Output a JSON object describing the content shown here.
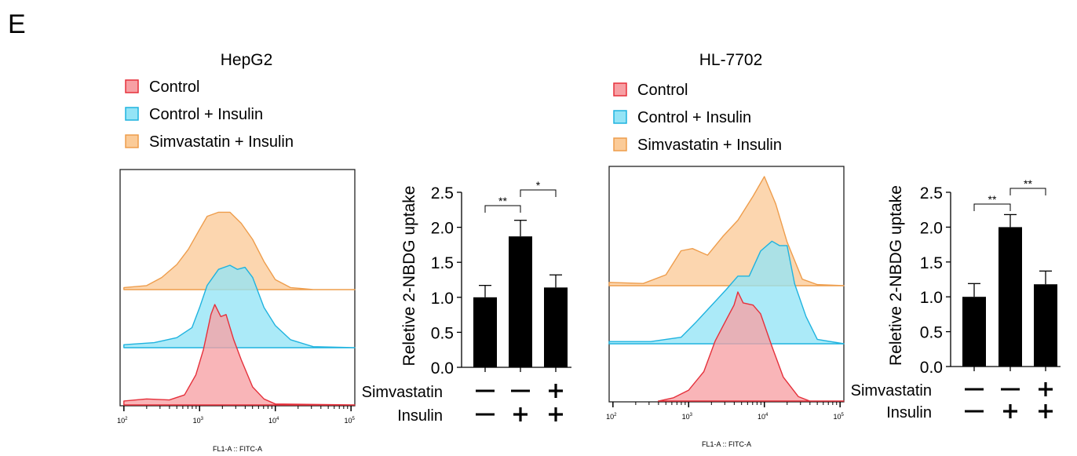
{
  "panel_label": "E",
  "colors": {
    "control": {
      "fill": "#f7a0a4",
      "stroke": "#e5303b"
    },
    "control_insulin": {
      "fill": "#94e4f6",
      "stroke": "#1fb3df"
    },
    "simvastatin_insulin": {
      "fill": "#fbcb98",
      "stroke": "#ee9d4c"
    },
    "bar": "#000000"
  },
  "chart_data": [
    {
      "type": "area",
      "title": "HepG2",
      "xlabel": "FL1-A :: FITC-A",
      "xscale": "log",
      "xlim_log10": [
        1.95,
        5.05
      ],
      "xticks": [
        {
          "exp": 2,
          "label_base": "10",
          "label_exp": "2"
        },
        {
          "exp": 3,
          "label_base": "10",
          "label_exp": "3"
        },
        {
          "exp": 4,
          "label_base": "10",
          "label_exp": "4"
        },
        {
          "exp": 5,
          "label_base": "10",
          "label_exp": "5"
        }
      ],
      "legend": [
        "Control",
        "Control + Insulin",
        "Simvastatin + Insulin"
      ],
      "series": [
        {
          "name": "Control",
          "key": "control",
          "points": [
            [
              2.0,
              0.04
            ],
            [
              2.3,
              0.06
            ],
            [
              2.6,
              0.05
            ],
            [
              2.8,
              0.1
            ],
            [
              2.95,
              0.3
            ],
            [
              3.05,
              0.55
            ],
            [
              3.15,
              0.9
            ],
            [
              3.2,
              1.0
            ],
            [
              3.28,
              0.88
            ],
            [
              3.35,
              0.9
            ],
            [
              3.45,
              0.65
            ],
            [
              3.55,
              0.45
            ],
            [
              3.7,
              0.18
            ],
            [
              3.85,
              0.06
            ],
            [
              4.0,
              0.01
            ],
            [
              5.05,
              0
            ]
          ]
        },
        {
          "name": "Control + Insulin",
          "key": "control_insulin",
          "points": [
            [
              2.0,
              0.03
            ],
            [
              2.4,
              0.05
            ],
            [
              2.7,
              0.1
            ],
            [
              2.9,
              0.2
            ],
            [
              3.0,
              0.4
            ],
            [
              3.1,
              0.62
            ],
            [
              3.25,
              0.78
            ],
            [
              3.4,
              0.82
            ],
            [
              3.5,
              0.78
            ],
            [
              3.6,
              0.8
            ],
            [
              3.7,
              0.7
            ],
            [
              3.85,
              0.4
            ],
            [
              4.0,
              0.22
            ],
            [
              4.2,
              0.08
            ],
            [
              4.5,
              0.01
            ],
            [
              5.05,
              0
            ]
          ]
        },
        {
          "name": "Simvastatin + Insulin",
          "key": "simvastatin_insulin",
          "points": [
            [
              2.0,
              0.02
            ],
            [
              2.3,
              0.04
            ],
            [
              2.5,
              0.12
            ],
            [
              2.7,
              0.25
            ],
            [
              2.85,
              0.4
            ],
            [
              3.0,
              0.6
            ],
            [
              3.1,
              0.73
            ],
            [
              3.25,
              0.77
            ],
            [
              3.4,
              0.77
            ],
            [
              3.55,
              0.66
            ],
            [
              3.7,
              0.5
            ],
            [
              3.85,
              0.28
            ],
            [
              4.0,
              0.1
            ],
            [
              4.2,
              0.02
            ],
            [
              4.5,
              0
            ],
            [
              5.05,
              0
            ]
          ]
        }
      ]
    },
    {
      "type": "bar",
      "title": "HepG2",
      "ylabel": "Reletive 2-NBDG uptake",
      "ylim": [
        0,
        2.5
      ],
      "yticks": [
        "0.0",
        "0.5",
        "1.0",
        "1.5",
        "2.0",
        "2.5"
      ],
      "values": [
        1.0,
        1.87,
        1.14
      ],
      "errors": [
        0.17,
        0.23,
        0.18
      ],
      "conditions": {
        "rows": [
          {
            "label": "Simvastatin",
            "signs": [
              "—",
              "—",
              "+"
            ]
          },
          {
            "label": "Insulin",
            "signs": [
              "—",
              "+",
              "+"
            ]
          }
        ]
      },
      "significance": [
        {
          "from": 0,
          "to": 1,
          "label": "**"
        },
        {
          "from": 1,
          "to": 2,
          "label": "*"
        }
      ]
    },
    {
      "type": "area",
      "title": "HL-7702",
      "xlabel": "FL1-A :: FITC-A",
      "xscale": "log",
      "xlim_log10": [
        1.95,
        5.05
      ],
      "xticks": [
        {
          "exp": 2,
          "label_base": "10",
          "label_exp": "2"
        },
        {
          "exp": 3,
          "label_base": "10",
          "label_exp": "3"
        },
        {
          "exp": 4,
          "label_base": "10",
          "label_exp": "4"
        },
        {
          "exp": 5,
          "label_base": "10",
          "label_exp": "5"
        }
      ],
      "legend": [
        "Control",
        "Control + Insulin",
        "Simvastatin + Insulin"
      ],
      "series": [
        {
          "name": "Control",
          "key": "control",
          "points": [
            [
              2.6,
              0
            ],
            [
              2.8,
              0.03
            ],
            [
              3.0,
              0.1
            ],
            [
              3.2,
              0.27
            ],
            [
              3.35,
              0.55
            ],
            [
              3.5,
              0.75
            ],
            [
              3.6,
              0.88
            ],
            [
              3.65,
              1.0
            ],
            [
              3.72,
              0.9
            ],
            [
              3.85,
              0.88
            ],
            [
              3.95,
              0.8
            ],
            [
              4.1,
              0.5
            ],
            [
              4.25,
              0.22
            ],
            [
              4.45,
              0.04
            ],
            [
              4.6,
              0
            ],
            [
              5.05,
              0
            ]
          ]
        },
        {
          "name": "Control + Insulin",
          "key": "control_insulin",
          "points": [
            [
              1.95,
              0.02
            ],
            [
              2.5,
              0.02
            ],
            [
              2.9,
              0.06
            ],
            [
              3.1,
              0.2
            ],
            [
              3.3,
              0.35
            ],
            [
              3.5,
              0.5
            ],
            [
              3.65,
              0.62
            ],
            [
              3.8,
              0.62
            ],
            [
              3.95,
              0.85
            ],
            [
              4.1,
              0.94
            ],
            [
              4.2,
              0.9
            ],
            [
              4.3,
              0.9
            ],
            [
              4.4,
              0.55
            ],
            [
              4.55,
              0.25
            ],
            [
              4.7,
              0.04
            ],
            [
              5.05,
              0
            ]
          ]
        },
        {
          "name": "Simvastatin + Insulin",
          "key": "simvastatin_insulin",
          "points": [
            [
              1.95,
              0.03
            ],
            [
              2.4,
              0.02
            ],
            [
              2.7,
              0.1
            ],
            [
              2.9,
              0.32
            ],
            [
              3.05,
              0.34
            ],
            [
              3.25,
              0.28
            ],
            [
              3.45,
              0.45
            ],
            [
              3.65,
              0.6
            ],
            [
              3.85,
              0.82
            ],
            [
              4.0,
              1.0
            ],
            [
              4.15,
              0.75
            ],
            [
              4.3,
              0.4
            ],
            [
              4.5,
              0.06
            ],
            [
              4.7,
              0.01
            ],
            [
              5.05,
              0
            ]
          ]
        }
      ]
    },
    {
      "type": "bar",
      "title": "HL-7702",
      "ylabel": "Reletive 2-NBDG uptake",
      "ylim": [
        0,
        2.5
      ],
      "yticks": [
        "0.0",
        "0.5",
        "1.0",
        "1.5",
        "2.0",
        "2.5"
      ],
      "values": [
        1.0,
        2.0,
        1.18
      ],
      "errors": [
        0.19,
        0.18,
        0.19
      ],
      "conditions": {
        "rows": [
          {
            "label": "Simvastatin",
            "signs": [
              "—",
              "—",
              "+"
            ]
          },
          {
            "label": "Insulin",
            "signs": [
              "—",
              "+",
              "+"
            ]
          }
        ]
      },
      "significance": [
        {
          "from": 0,
          "to": 1,
          "label": "**"
        },
        {
          "from": 1,
          "to": 2,
          "label": "**"
        }
      ]
    }
  ]
}
